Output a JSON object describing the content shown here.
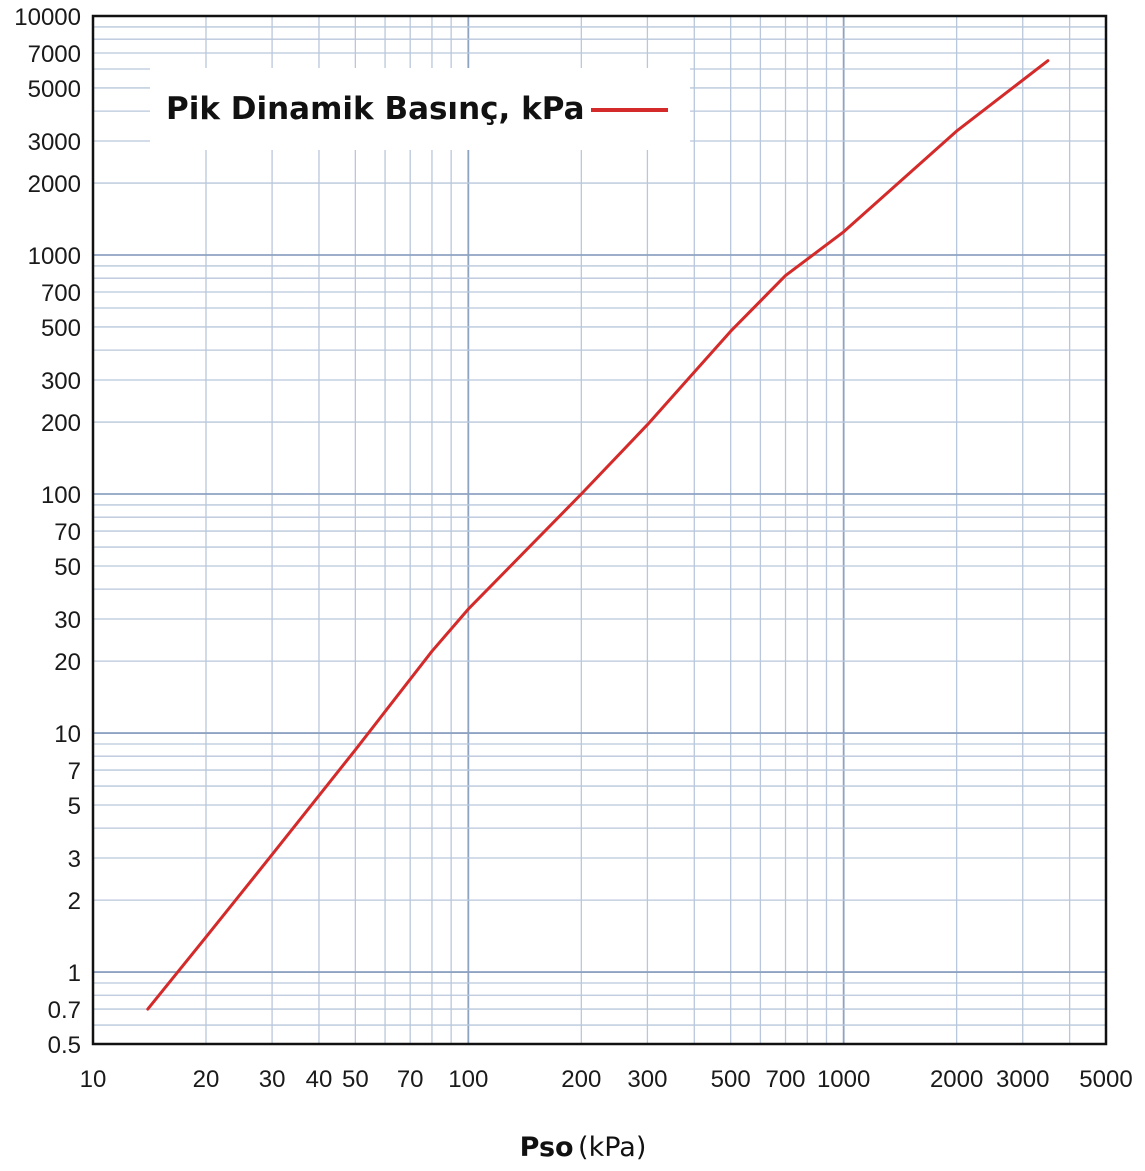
{
  "chart_data": {
    "type": "line",
    "x_scale": "log",
    "y_scale": "log",
    "xlim": [
      10,
      5000
    ],
    "ylim": [
      0.5,
      10000
    ],
    "x_ticks": [
      10,
      20,
      30,
      40,
      50,
      70,
      100,
      200,
      300,
      500,
      700,
      1000,
      2000,
      3000,
      5000
    ],
    "x_tick_labels": [
      "10",
      "20",
      "30",
      "40",
      "50",
      "70",
      "100",
      "200",
      "300",
      "500",
      "700",
      "1000",
      "2000",
      "3000",
      "5000"
    ],
    "y_ticks": [
      0.5,
      0.7,
      1,
      2,
      3,
      5,
      7,
      10,
      20,
      30,
      50,
      70,
      100,
      200,
      300,
      500,
      700,
      1000,
      2000,
      3000,
      5000,
      7000,
      10000
    ],
    "y_tick_labels": [
      "0.5",
      "0.7",
      "1",
      "2",
      "3",
      "5",
      "7",
      "10",
      "20",
      "30",
      "50",
      "70",
      "100",
      "200",
      "300",
      "500",
      "700",
      "1000",
      "2000",
      "3000",
      "5000",
      "7000",
      "10000"
    ],
    "grid": true,
    "legend_position": "top-left",
    "xlabel_bold": "Pso",
    "xlabel_unit": "(kPa)",
    "series": [
      {
        "name": "Pik Dinamik Basınç, kPa",
        "color": "#d42a2a",
        "x": [
          14,
          20,
          30,
          50,
          80,
          100,
          200,
          300,
          500,
          700,
          1000,
          2000,
          3500
        ],
        "y": [
          0.7,
          1.4,
          3.1,
          8.5,
          22,
          33,
          100,
          195,
          480,
          820,
          1250,
          3300,
          6500
        ]
      }
    ]
  }
}
